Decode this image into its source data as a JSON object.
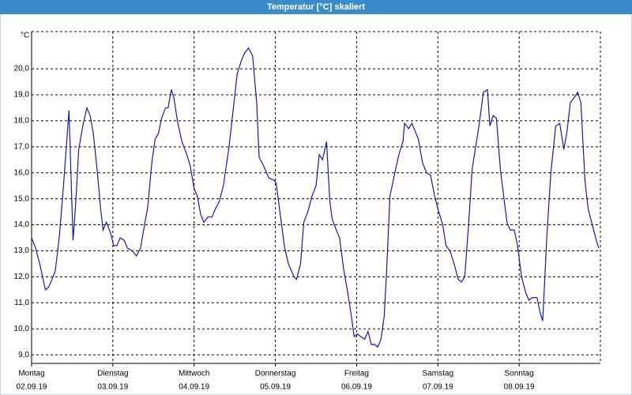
{
  "chart_data": {
    "type": "line",
    "title": "Temperatur [°C] skaliert",
    "y_unit": "°C",
    "color": "#1818a8",
    "grid": true,
    "xlim": [
      0,
      7
    ],
    "ylim": [
      8.67,
      21.43
    ],
    "xticks": [
      {
        "value": 0,
        "label": "Montag",
        "date": "02.09.19"
      },
      {
        "value": 1,
        "label": "Dienstag",
        "date": "03.09.19"
      },
      {
        "value": 2,
        "label": "Mittwoch",
        "date": "04.09.19"
      },
      {
        "value": 3,
        "label": "Donnerstag",
        "date": "05.09.19"
      },
      {
        "value": 4,
        "label": "Freitag",
        "date": "06.09.19"
      },
      {
        "value": 5,
        "label": "Samstag",
        "date": "07.09.19"
      },
      {
        "value": 6,
        "label": "Sonntag",
        "date": "08.09.19"
      }
    ],
    "yticks": [
      {
        "value": 9,
        "label": "9,0"
      },
      {
        "value": 10,
        "label": "10,0"
      },
      {
        "value": 11,
        "label": "11,0"
      },
      {
        "value": 12,
        "label": "12,0"
      },
      {
        "value": 13,
        "label": "13,0"
      },
      {
        "value": 14,
        "label": "14,0"
      },
      {
        "value": 15,
        "label": "15,0"
      },
      {
        "value": 16,
        "label": "16,0"
      },
      {
        "value": 17,
        "label": "17,0"
      },
      {
        "value": 18,
        "label": "18,0"
      },
      {
        "value": 19,
        "label": "19,0"
      },
      {
        "value": 20,
        "label": "20,0"
      }
    ],
    "x": [
      0,
      0.05,
      0.1,
      0.17,
      0.21,
      0.29,
      0.34,
      0.39,
      0.46,
      0.51,
      0.54,
      0.58,
      0.63,
      0.68,
      0.72,
      0.76,
      0.81,
      0.85,
      0.88,
      0.92,
      0.97,
      1.01,
      1.05,
      1.09,
      1.14,
      1.18,
      1.24,
      1.29,
      1.34,
      1.39,
      1.43,
      1.48,
      1.52,
      1.56,
      1.6,
      1.65,
      1.68,
      1.72,
      1.75,
      1.8,
      1.85,
      1.91,
      1.95,
      2.0,
      2.04,
      2.08,
      2.12,
      2.17,
      2.22,
      2.26,
      2.31,
      2.36,
      2.43,
      2.48,
      2.53,
      2.58,
      2.62,
      2.67,
      2.72,
      2.77,
      2.8,
      2.85,
      2.92,
      2.99,
      3.01,
      3.06,
      3.11,
      3.16,
      3.23,
      3.26,
      3.31,
      3.35,
      3.4,
      3.45,
      3.5,
      3.54,
      3.58,
      3.63,
      3.67,
      3.7,
      3.75,
      3.79,
      3.84,
      3.89,
      3.93,
      3.97,
      4.01,
      4.05,
      4.1,
      4.14,
      4.18,
      4.22,
      4.26,
      4.3,
      4.34,
      4.37,
      4.41,
      4.47,
      4.52,
      4.57,
      4.59,
      4.64,
      4.68,
      4.72,
      4.76,
      4.81,
      4.86,
      4.91,
      4.96,
      5.01,
      5.06,
      5.1,
      5.15,
      5.2,
      5.25,
      5.29,
      5.33,
      5.38,
      5.42,
      5.46,
      5.51,
      5.56,
      5.61,
      5.64,
      5.68,
      5.72,
      5.77,
      5.81,
      5.85,
      5.89,
      5.94,
      5.98,
      6.03,
      6.08,
      6.12,
      6.16,
      6.22,
      6.26,
      6.29,
      6.34,
      6.39,
      6.45,
      6.5,
      6.55,
      6.59,
      6.63,
      6.68,
      6.72,
      6.76,
      6.81,
      6.85,
      6.9,
      6.95,
      6.98
    ],
    "values": [
      13.5,
      13.1,
      12.5,
      11.5,
      11.6,
      12.2,
      13.5,
      15.4,
      18.4,
      13.4,
      14.7,
      16.9,
      17.8,
      18.5,
      18.2,
      17.5,
      16.0,
      14.6,
      13.8,
      14.1,
      13.7,
      13.2,
      13.2,
      13.5,
      13.4,
      13.1,
      13.0,
      12.8,
      13.1,
      14.0,
      14.7,
      16.4,
      17.3,
      17.5,
      18.1,
      18.5,
      18.5,
      19.2,
      18.9,
      17.9,
      17.2,
      16.7,
      16.3,
      15.4,
      15.1,
      14.4,
      14.1,
      14.3,
      14.3,
      14.6,
      14.9,
      15.5,
      17.0,
      18.4,
      19.8,
      20.3,
      20.6,
      20.8,
      20.5,
      18.7,
      16.6,
      16.3,
      15.8,
      15.7,
      15.6,
      14.4,
      13.2,
      12.5,
      12.0,
      11.9,
      12.5,
      14.1,
      14.5,
      15.1,
      15.5,
      16.7,
      16.5,
      17.2,
      14.9,
      14.2,
      13.8,
      13.5,
      12.3,
      11.4,
      10.6,
      9.7,
      9.8,
      9.7,
      9.6,
      9.9,
      9.4,
      9.4,
      9.3,
      9.6,
      10.5,
      12.3,
      15.1,
      16.0,
      16.7,
      17.2,
      17.9,
      17.7,
      17.9,
      17.6,
      17.3,
      16.4,
      16.0,
      15.9,
      15.1,
      14.5,
      14.0,
      13.2,
      13.0,
      12.5,
      11.9,
      11.8,
      12.0,
      14.1,
      16.1,
      16.9,
      17.9,
      19.1,
      19.2,
      17.8,
      18.2,
      18.1,
      16.1,
      15.1,
      14.1,
      13.8,
      13.8,
      13.2,
      12.0,
      11.4,
      11.1,
      11.2,
      11.2,
      10.6,
      10.3,
      13.5,
      16.0,
      17.8,
      17.9,
      16.9,
      17.6,
      18.7,
      18.9,
      19.1,
      18.7,
      15.7,
      14.6,
      14.0,
      13.4,
      13.1
    ]
  }
}
